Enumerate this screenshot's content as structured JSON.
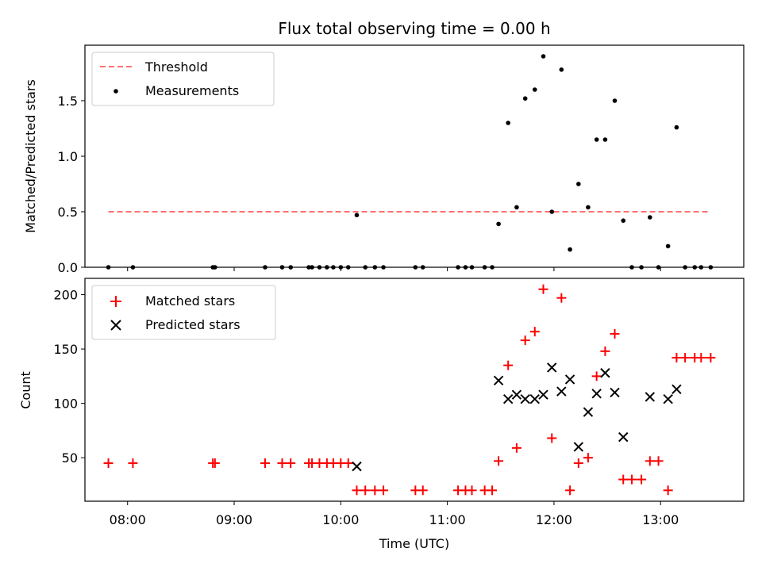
{
  "chart_data": {
    "title": "Flux total observing time = 0.00 h",
    "xlabel": "Time (UTC)",
    "x_ticks": [
      "08:00",
      "09:00",
      "10:00",
      "11:00",
      "12:00",
      "13:00"
    ],
    "x_tick_hours": [
      8,
      9,
      10,
      11,
      12,
      13
    ],
    "xlim_hours": [
      7.6,
      13.78
    ],
    "colors": {
      "threshold": "#ff7070",
      "measurements": "#000000",
      "matched": "#ff0000",
      "predicted": "#000000"
    },
    "panels": [
      {
        "id": "ratio",
        "type": "scatter",
        "ylabel": "Matched/Predicted stars",
        "ylim": [
          0,
          2.0
        ],
        "y_ticks": [
          0.0,
          0.5,
          1.0,
          1.5
        ],
        "y_tick_labels": [
          "0.0",
          "0.5",
          "1.0",
          "1.5"
        ],
        "legend": [
          "Threshold",
          "Measurements"
        ],
        "legend_position": "upper-left",
        "threshold": {
          "name": "Threshold",
          "y": 0.5,
          "x_range_hours": [
            7.82,
            13.47
          ],
          "style": "dashed"
        },
        "series": [
          {
            "name": "Measurements",
            "marker": "dot",
            "x_hours": [
              7.82,
              8.05,
              8.8,
              8.82,
              9.29,
              9.45,
              9.53,
              9.7,
              9.73,
              9.8,
              9.87,
              9.93,
              10.0,
              10.07,
              10.15,
              10.23,
              10.32,
              10.4,
              10.7,
              10.77,
              11.1,
              11.17,
              11.23,
              11.35,
              11.42,
              11.48,
              11.57,
              11.65,
              11.73,
              11.82,
              11.9,
              11.98,
              12.07,
              12.15,
              12.23,
              12.32,
              12.4,
              12.48,
              12.57,
              12.65,
              12.73,
              12.82,
              12.9,
              12.98,
              13.07,
              13.15,
              13.23,
              13.32,
              13.38,
              13.47
            ],
            "y": [
              0.0,
              0.0,
              0.0,
              0.0,
              0.0,
              0.0,
              0.0,
              0.0,
              0.0,
              0.0,
              0.0,
              0.0,
              0.0,
              0.0,
              0.47,
              0.0,
              0.0,
              0.0,
              0.0,
              0.0,
              0.0,
              0.0,
              0.0,
              0.0,
              0.0,
              0.39,
              1.3,
              0.54,
              1.52,
              1.6,
              1.9,
              0.5,
              1.78,
              0.16,
              0.75,
              0.54,
              1.15,
              1.15,
              1.5,
              0.42,
              0.0,
              0.0,
              0.45,
              0.0,
              0.19,
              1.26,
              0.0,
              0.0,
              0.0,
              0.0
            ]
          }
        ]
      },
      {
        "id": "count",
        "type": "scatter",
        "ylabel": "Count",
        "ylim": [
          10,
          215
        ],
        "y_ticks": [
          50,
          100,
          150,
          200
        ],
        "y_tick_labels": [
          "50",
          "100",
          "150",
          "200"
        ],
        "legend": [
          "Matched stars",
          "Predicted stars"
        ],
        "legend_position": "upper-left",
        "series": [
          {
            "name": "Matched stars",
            "marker": "plus",
            "x_hours": [
              7.82,
              8.05,
              8.8,
              8.82,
              9.29,
              9.45,
              9.53,
              9.7,
              9.73,
              9.8,
              9.87,
              9.93,
              10.0,
              10.07,
              10.15,
              10.23,
              10.32,
              10.4,
              10.7,
              10.77,
              11.1,
              11.17,
              11.23,
              11.35,
              11.42,
              11.48,
              11.57,
              11.65,
              11.73,
              11.82,
              11.9,
              11.98,
              12.07,
              12.15,
              12.23,
              12.32,
              12.4,
              12.48,
              12.57,
              12.65,
              12.73,
              12.82,
              12.9,
              12.98,
              13.07,
              13.15,
              13.23,
              13.32,
              13.38,
              13.47
            ],
            "y": [
              45,
              45,
              45,
              45,
              45,
              45,
              45,
              45,
              45,
              45,
              45,
              45,
              45,
              45,
              20,
              20,
              20,
              20,
              20,
              20,
              20,
              20,
              20,
              20,
              20,
              47,
              135,
              59,
              158,
              166,
              205,
              68,
              197,
              20,
              45,
              50,
              125,
              148,
              164,
              30,
              30,
              30,
              47,
              47,
              20,
              142,
              142,
              142,
              142,
              142
            ]
          },
          {
            "name": "Predicted stars",
            "marker": "x",
            "x_hours": [
              10.15,
              11.48,
              11.57,
              11.65,
              11.73,
              11.82,
              11.9,
              11.98,
              12.07,
              12.15,
              12.23,
              12.32,
              12.4,
              12.48,
              12.57,
              12.65,
              12.9,
              13.07,
              13.15
            ],
            "y": [
              42,
              121,
              104,
              108,
              104,
              104,
              108,
              133,
              111,
              122,
              60,
              92,
              109,
              128,
              110,
              69,
              106,
              104,
              113
            ]
          }
        ]
      }
    ]
  }
}
